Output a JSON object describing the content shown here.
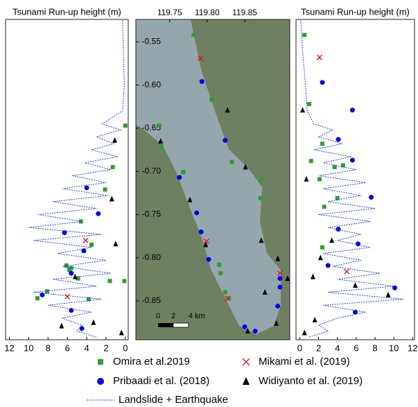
{
  "chart_data": [
    {
      "type": "scatter",
      "title": "Tsunami Run-up height (m)",
      "xlim": [
        12.4,
        -0.3
      ],
      "xticks": [
        12,
        10,
        8,
        6,
        4,
        2,
        0
      ],
      "ylim": [
        -0.524,
        -0.895
      ],
      "series": [
        {
          "name": "Omira et al.2019",
          "color": "#2e9e2e",
          "marker": "square",
          "x": [
            0,
            1.3,
            2.1,
            4.6,
            3.5,
            6.1,
            5.8,
            8.1,
            9.1,
            1.6,
            0.1,
            4.9,
            3.8,
            5.6
          ],
          "y": [
            -0.647,
            -0.695,
            -0.721,
            -0.758,
            -0.785,
            -0.809,
            -0.814,
            -0.839,
            -0.847,
            -0.827,
            -0.827,
            -0.824,
            -0.848,
            -0.812
          ]
        },
        {
          "name": "Pribaadi et al. (2018)",
          "color": "#0000ee",
          "marker": "circle",
          "x": [
            4,
            2.8,
            6.3,
            4.3,
            5.6,
            8.6,
            5.6,
            4.5
          ],
          "y": [
            -0.719,
            -0.749,
            -0.771,
            -0.792,
            -0.818,
            -0.843,
            -0.861,
            -0.882
          ]
        },
        {
          "name": "Mikami et al. (2019)",
          "color": "#e02020",
          "marker": "x",
          "x": [
            4.1,
            6
          ],
          "y": [
            -0.78,
            -0.845
          ]
        },
        {
          "name": "Widiyanto et al. (2019)",
          "color": "#000000",
          "marker": "triangle",
          "x": [
            1.1,
            1.4,
            1,
            5.2,
            3.3,
            6.6,
            0.4
          ],
          "y": [
            -0.664,
            -0.732,
            -0.784,
            -0.822,
            -0.875,
            -0.879,
            -0.887
          ]
        },
        {
          "name": "Landslide + Earthquake",
          "color": "#1f3fd0",
          "marker": "line",
          "x": [
            0.3,
            0.2,
            0.1,
            0.3,
            2.4,
            0.5,
            3.0,
            1.2,
            3.5,
            0.8,
            4.2,
            1.5,
            5.5,
            2.0,
            6.5,
            1.8,
            7.5,
            3.0,
            9.0,
            4.5,
            10.0,
            2.5,
            9.5,
            3.5,
            7.0,
            2.0,
            6.5,
            1.5,
            7.5,
            3.0,
            9.5,
            2.5,
            8.0,
            3.5,
            6.5,
            4.5,
            5.0,
            3.0
          ],
          "y": [
            -0.525,
            -0.56,
            -0.6,
            -0.63,
            -0.645,
            -0.652,
            -0.66,
            -0.668,
            -0.675,
            -0.683,
            -0.69,
            -0.698,
            -0.705,
            -0.713,
            -0.72,
            -0.728,
            -0.735,
            -0.743,
            -0.75,
            -0.758,
            -0.765,
            -0.773,
            -0.78,
            -0.788,
            -0.795,
            -0.803,
            -0.81,
            -0.818,
            -0.825,
            -0.833,
            -0.84,
            -0.848,
            -0.855,
            -0.863,
            -0.87,
            -0.878,
            -0.885,
            -0.892
          ]
        }
      ]
    },
    {
      "type": "map",
      "xlim": [
        119.705,
        119.91
      ],
      "xticks": [
        119.75,
        {
          "value": 119.8,
          "label": "119.80"
        },
        119.85
      ],
      "ylim": [
        -0.524,
        -0.895
      ],
      "yticks": [
        -0.55,
        {
          "value": -0.6,
          "label": "-0.60"
        },
        -0.65,
        {
          "value": -0.7,
          "label": "-0.70"
        },
        -0.75,
        {
          "value": -0.8,
          "label": "-0.80"
        },
        -0.85
      ],
      "scale_labels": [
        "0",
        "2",
        "4 km"
      ],
      "series": [
        {
          "color": "#2e9e2e",
          "marker": "square",
          "x": [
            119.782,
            119.806,
            119.736,
            119.768,
            119.833,
            119.872,
            119.871,
            119.816,
            119.818,
            119.824,
            119.829,
            119.739
          ],
          "y": [
            -0.542,
            -0.617,
            -0.647,
            -0.701,
            -0.689,
            -0.709,
            -0.731,
            -0.808,
            -0.818,
            -0.84,
            -0.847,
            -0.671
          ]
        },
        {
          "color": "#0000ee",
          "marker": "circle",
          "x": [
            119.793,
            119.824,
            119.763,
            119.786,
            119.792,
            119.802,
            119.897,
            119.897,
            119.894,
            119.85,
            119.864
          ],
          "y": [
            -0.596,
            -0.664,
            -0.707,
            -0.748,
            -0.77,
            -0.802,
            -0.824,
            -0.834,
            -0.856,
            -0.88,
            -0.885
          ]
        },
        {
          "color": "#e02020",
          "marker": "x",
          "x": [
            119.791,
            119.799,
            119.897,
            119.827
          ],
          "y": [
            -0.569,
            -0.781,
            -0.818,
            -0.847
          ]
        },
        {
          "color": "#000000",
          "marker": "triangle",
          "x": [
            119.827,
            119.738,
            119.851,
            119.777,
            119.872,
            119.798,
            119.894,
            119.907,
            119.877,
            119.892,
            119.854
          ],
          "y": [
            -0.629,
            -0.665,
            -0.695,
            -0.733,
            -0.78,
            -0.785,
            -0.801,
            -0.824,
            -0.84,
            -0.876,
            -0.885
          ]
        }
      ]
    },
    {
      "type": "scatter",
      "title": "Tsunami Run-up height (m)",
      "xlim": [
        -0.4,
        12.2
      ],
      "xticks": [
        0,
        2,
        4,
        6,
        8,
        10,
        12
      ],
      "ylim": [
        -0.524,
        -0.895
      ],
      "series": [
        {
          "color": "#2e9e2e",
          "marker": "square",
          "x": [
            0.5,
            1,
            2.4,
            1.2,
            3.7,
            4.6,
            2.1,
            4,
            2.6,
            2.4
          ],
          "y": [
            -0.542,
            -0.622,
            -0.668,
            -0.688,
            -0.695,
            -0.693,
            -0.709,
            -0.731,
            -0.741,
            -0.788
          ]
        },
        {
          "color": "#0000ee",
          "marker": "circle",
          "x": [
            2.4,
            5.6,
            4.1,
            5.6,
            7.6,
            4.1,
            6.2,
            3,
            10.1,
            5.9
          ],
          "y": [
            -0.597,
            -0.629,
            -0.663,
            -0.687,
            -0.73,
            -0.767,
            -0.784,
            -0.809,
            -0.835,
            -0.863
          ]
        },
        {
          "color": "#e02020",
          "marker": "x",
          "x": [
            2.1,
            5
          ],
          "y": [
            -0.568,
            -0.816
          ]
        },
        {
          "color": "#000000",
          "marker": "triangle",
          "x": [
            0.3,
            0.7,
            3.4,
            2.2,
            1.4,
            5.9,
            9.4,
            1.6,
            0.5
          ],
          "y": [
            -0.629,
            -0.709,
            -0.78,
            -0.8,
            -0.822,
            -0.832,
            -0.843,
            -0.872,
            -0.887
          ]
        },
        {
          "color": "#1f3fd0",
          "marker": "line",
          "x": [
            0.1,
            0.3,
            0.6,
            0.8,
            1.5,
            3.5,
            2,
            4.5,
            1.5,
            5.5,
            2.5,
            6.0,
            2.0,
            7.0,
            2.5,
            6.5,
            3.0,
            8.0,
            2.0,
            7.5,
            3.0,
            6.5,
            4.0,
            7.5,
            2.5,
            6.5,
            3.5,
            8.5,
            4.0,
            10.0,
            3.0,
            11.0,
            2.5,
            7.0,
            4.0,
            2.0,
            3.0,
            1.0
          ],
          "y": [
            -0.525,
            -0.56,
            -0.6,
            -0.63,
            -0.645,
            -0.652,
            -0.66,
            -0.668,
            -0.675,
            -0.683,
            -0.69,
            -0.698,
            -0.705,
            -0.713,
            -0.72,
            -0.728,
            -0.735,
            -0.743,
            -0.75,
            -0.758,
            -0.765,
            -0.773,
            -0.78,
            -0.788,
            -0.795,
            -0.803,
            -0.81,
            -0.818,
            -0.825,
            -0.833,
            -0.84,
            -0.848,
            -0.855,
            -0.863,
            -0.87,
            -0.878,
            -0.885,
            -0.892
          ]
        }
      ]
    }
  ]
}
